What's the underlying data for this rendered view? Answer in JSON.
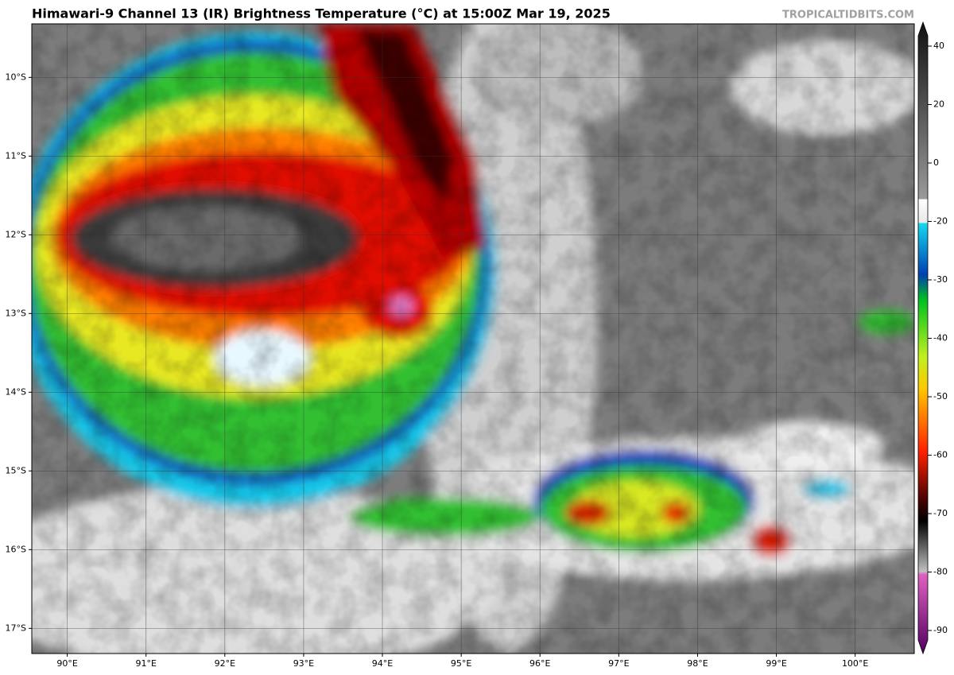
{
  "title": "Himawari-9 Channel 13 (IR) Brightness Temperature (°C) at 15:00Z Mar 19, 2025",
  "watermark": "TROPICALTIDBITS.COM",
  "map": {
    "xlim": [
      89.55,
      100.75
    ],
    "ylim": [
      -17.32,
      -9.32
    ],
    "lon_ticks": [
      {
        "value": 90,
        "label": "90°E"
      },
      {
        "value": 91,
        "label": "91°E"
      },
      {
        "value": 92,
        "label": "92°E"
      },
      {
        "value": 93,
        "label": "93°E"
      },
      {
        "value": 94,
        "label": "94°E"
      },
      {
        "value": 95,
        "label": "95°E"
      },
      {
        "value": 96,
        "label": "96°E"
      },
      {
        "value": 97,
        "label": "97°E"
      },
      {
        "value": 98,
        "label": "98°E"
      },
      {
        "value": 99,
        "label": "99°E"
      },
      {
        "value": 100,
        "label": "100°E"
      }
    ],
    "lat_ticks": [
      {
        "value": -10,
        "label": "10°S"
      },
      {
        "value": -11,
        "label": "11°S"
      },
      {
        "value": -12,
        "label": "12°S"
      },
      {
        "value": -13,
        "label": "13°S"
      },
      {
        "value": -14,
        "label": "14°S"
      },
      {
        "value": -15,
        "label": "15°S"
      },
      {
        "value": -16,
        "label": "16°S"
      },
      {
        "value": -17,
        "label": "17°S"
      }
    ]
  },
  "colorbar": {
    "ticks": [
      40,
      20,
      0,
      -20,
      -30,
      -40,
      -50,
      -60,
      -70,
      -80,
      -90
    ]
  }
}
